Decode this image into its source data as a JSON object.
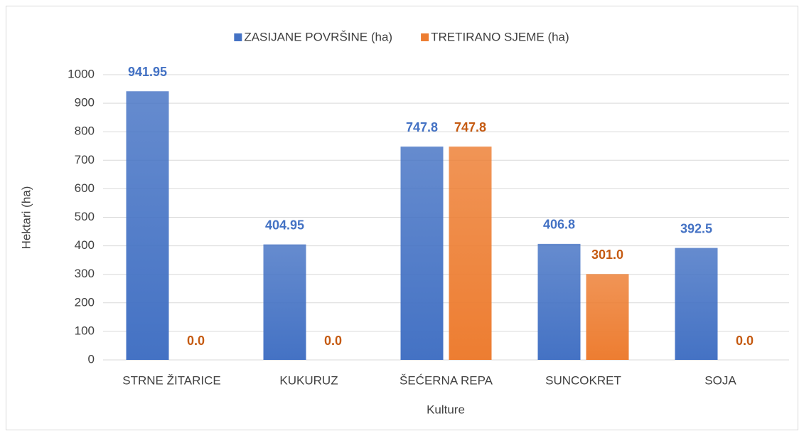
{
  "chart_data": {
    "type": "bar",
    "categories": [
      "STRNE ŽITARICE",
      "KUKURUZ",
      "ŠEĆERNA REPA",
      "SUNCOKRET",
      "SOJA"
    ],
    "series": [
      {
        "name": "ZASIJANE POVRŠINE (ha)",
        "color": "#4472c4",
        "values": [
          941.95,
          404.95,
          747.8,
          406.8,
          392.5
        ],
        "value_labels": [
          "941.95",
          "404.95",
          "747.8",
          "406.8",
          "392.5"
        ]
      },
      {
        "name": "TRETIRANO SJEME (ha)",
        "color": "#ed7d31",
        "values": [
          0,
          0,
          747.8,
          301,
          0
        ],
        "value_labels": [
          "0.0",
          "0.0",
          "747.8",
          "301.0",
          "0.0"
        ]
      }
    ],
    "x_label": "Kulture",
    "y_label": "Hektari (ha)",
    "ylim": [
      0,
      1000
    ],
    "yticks": [
      0,
      100,
      200,
      300,
      400,
      500,
      600,
      700,
      800,
      900,
      1000
    ],
    "grid": true,
    "legend": "top"
  }
}
